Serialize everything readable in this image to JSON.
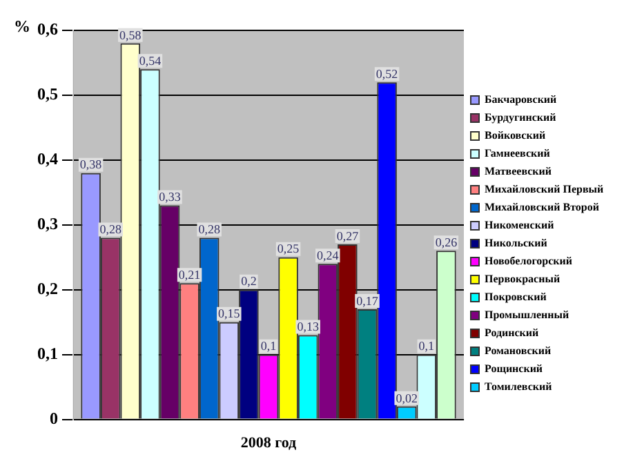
{
  "chart_data": {
    "type": "bar",
    "ylabel": "%",
    "categories": [
      "2008 год"
    ],
    "ylim": [
      0,
      0.6
    ],
    "yticks": [
      {
        "value": 0,
        "label": "0"
      },
      {
        "value": 0.1,
        "label": "0,1"
      },
      {
        "value": 0.2,
        "label": "0,2"
      },
      {
        "value": 0.3,
        "label": "0,3"
      },
      {
        "value": 0.4,
        "label": "0,4"
      },
      {
        "value": 0.5,
        "label": "0,5"
      },
      {
        "value": 0.6,
        "label": "0,6"
      }
    ],
    "grid": "y",
    "legend": "right",
    "series": [
      {
        "name": "Бакчаровский",
        "color": "#9999ff",
        "values": [
          0.38
        ],
        "value_labels": [
          "0,38"
        ]
      },
      {
        "name": "Бурдугинский",
        "color": "#993366",
        "values": [
          0.28
        ],
        "value_labels": [
          "0,28"
        ]
      },
      {
        "name": "Войковский",
        "color": "#ffffcc",
        "values": [
          0.58
        ],
        "value_labels": [
          "0,58"
        ]
      },
      {
        "name": "Гамнеевский",
        "color": "#ccffff",
        "values": [
          0.54
        ],
        "value_labels": [
          "0,54"
        ]
      },
      {
        "name": "Матвеевский",
        "color": "#660066",
        "values": [
          0.33
        ],
        "value_labels": [
          "0,33"
        ]
      },
      {
        "name": "Михайловский Первый",
        "color": "#ff8080",
        "values": [
          0.21
        ],
        "value_labels": [
          "0,21"
        ]
      },
      {
        "name": "Михайловский Второй",
        "color": "#0066cc",
        "values": [
          0.28
        ],
        "value_labels": [
          "0,28"
        ]
      },
      {
        "name": "Никоменский",
        "color": "#ccccff",
        "values": [
          0.15
        ],
        "value_labels": [
          "0,15"
        ]
      },
      {
        "name": "Никольский",
        "color": "#000080",
        "values": [
          0.2
        ],
        "value_labels": [
          "0,2"
        ]
      },
      {
        "name": "Новобелогорский",
        "color": "#ff00ff",
        "values": [
          0.1
        ],
        "value_labels": [
          "0,1"
        ]
      },
      {
        "name": "Первокрасный",
        "color": "#ffff00",
        "values": [
          0.25
        ],
        "value_labels": [
          "0,25"
        ]
      },
      {
        "name": "Покровский",
        "color": "#00ffff",
        "values": [
          0.13
        ],
        "value_labels": [
          "0,13"
        ]
      },
      {
        "name": "Промышленный",
        "color": "#800080",
        "values": [
          0.24
        ],
        "value_labels": [
          "0,24"
        ]
      },
      {
        "name": "Родинский",
        "color": "#800000",
        "values": [
          0.27
        ],
        "value_labels": [
          "0,27"
        ]
      },
      {
        "name": "Романовский",
        "color": "#008080",
        "values": [
          0.17
        ],
        "value_labels": [
          "0,17"
        ]
      },
      {
        "name": "Рощинский",
        "color": "#0000ff",
        "values": [
          0.52
        ],
        "value_labels": [
          "0,52"
        ]
      },
      {
        "name": "Томилевский",
        "color": "#00ccff",
        "values": [
          0.02
        ],
        "value_labels": [
          "0,02"
        ]
      },
      {
        "color": "#ccffff",
        "values": [
          0.1
        ],
        "value_labels": [
          "0,1"
        ]
      },
      {
        "color": "#ccffcc",
        "values": [
          0.26
        ],
        "value_labels": [
          "0,26"
        ]
      }
    ]
  }
}
